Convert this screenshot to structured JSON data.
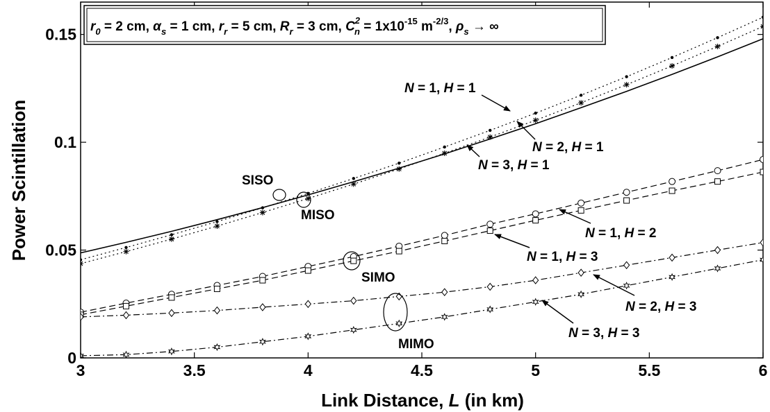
{
  "chart_data": {
    "type": "line",
    "xlabel_parts": [
      "Link Distance, ",
      "L",
      " (in km)"
    ],
    "ylabel": "Power Scintillation",
    "xlim": [
      3,
      6
    ],
    "ylim": [
      0,
      0.165
    ],
    "xticks": [
      "3",
      "3.5",
      "4",
      "4.5",
      "5",
      "5.5",
      "6"
    ],
    "yticks": [
      "0",
      "0.05",
      "0.1",
      "0.15"
    ],
    "grid": false,
    "parameters_box": {
      "r0": "= 2 cm,",
      "alpha_s": "= 1 cm,",
      "r_r": "= 5 cm,",
      "R_r": "= 3 cm,",
      "Cn2": "= 1x10",
      "Cn2_exp": "-15",
      "Cn2_unit": " m",
      "Cn2_unit_exp": "-2/3",
      "rho_s": "→ ∞"
    },
    "x": [
      3.0,
      3.2,
      3.4,
      3.6,
      3.8,
      4.0,
      4.2,
      4.4,
      4.6,
      4.8,
      5.0,
      5.2,
      5.4,
      5.6,
      5.8,
      6.0
    ],
    "series": [
      {
        "style": "solid",
        "marker": "none",
        "values": [
          0.0487,
          0.0536,
          0.0587,
          0.0641,
          0.0697,
          0.0756,
          0.0817,
          0.088,
          0.0946,
          0.1015,
          0.1086,
          0.116,
          0.1236,
          0.1315,
          0.1396,
          0.148
        ]
      },
      {
        "style": "dotted",
        "marker": "dot",
        "values": [
          0.0455,
          0.0512,
          0.0571,
          0.0632,
          0.0696,
          0.0763,
          0.0832,
          0.0903,
          0.0978,
          0.1055,
          0.1135,
          0.1218,
          0.1304,
          0.1393,
          0.1485,
          0.158
        ]
      },
      {
        "style": "dotted",
        "marker": "star",
        "values": [
          0.0437,
          0.0493,
          0.0551,
          0.0611,
          0.0674,
          0.0739,
          0.0806,
          0.0876,
          0.0949,
          0.1024,
          0.1102,
          0.1183,
          0.1267,
          0.1354,
          0.1444,
          0.1537
        ]
      },
      {
        "style": "dashed",
        "marker": "circle",
        "values": [
          0.0212,
          0.0254,
          0.0295,
          0.0336,
          0.0378,
          0.0424,
          0.047,
          0.0518,
          0.0568,
          0.062,
          0.0668,
          0.0718,
          0.0768,
          0.0818,
          0.0868,
          0.092
        ]
      },
      {
        "style": "dashed",
        "marker": "square",
        "values": [
          0.02,
          0.024,
          0.028,
          0.032,
          0.036,
          0.0405,
          0.045,
          0.0495,
          0.0542,
          0.059,
          0.0638,
          0.0684,
          0.073,
          0.0775,
          0.0818,
          0.0862
        ]
      },
      {
        "style": "dashdot",
        "marker": "diamond",
        "values": [
          0.019,
          0.0198,
          0.0208,
          0.022,
          0.0235,
          0.025,
          0.0265,
          0.0285,
          0.0305,
          0.033,
          0.036,
          0.0395,
          0.043,
          0.0465,
          0.05,
          0.0535
        ]
      },
      {
        "style": "dashdot",
        "marker": "hexagram",
        "values": [
          0.001,
          0.0015,
          0.003,
          0.005,
          0.0075,
          0.01,
          0.013,
          0.016,
          0.019,
          0.0225,
          0.026,
          0.0295,
          0.0335,
          0.0375,
          0.0415,
          0.0455
        ]
      }
    ],
    "annotations": [
      {
        "id": "n1h1",
        "n": "1",
        "h": "1"
      },
      {
        "id": "n2h1",
        "n": "2",
        "h": "1"
      },
      {
        "id": "n3h1",
        "n": "3",
        "h": "1"
      },
      {
        "id": "n1h2",
        "n": "1",
        "h": "2"
      },
      {
        "id": "n1h3",
        "n": "1",
        "h": "3"
      },
      {
        "id": "n2h3",
        "n": "2",
        "h": "3"
      },
      {
        "id": "n3h3",
        "n": "3",
        "h": "3"
      }
    ],
    "region_labels": [
      "SISO",
      "MISO",
      "SIMO",
      "MIMO"
    ]
  }
}
